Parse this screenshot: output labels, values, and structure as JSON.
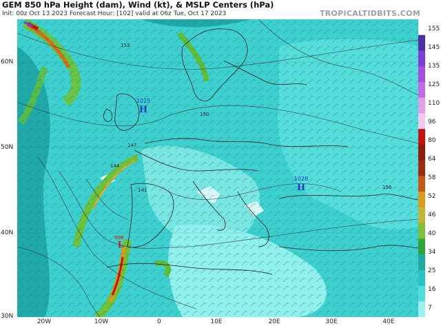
{
  "header": {
    "title": "GEM 850 hPa Height (dam), Wind (kt), & MSLP Centers (hPa)",
    "subtitle": "Init: 00z Oct 13 2023   Forecast Hour: [102]   valid at 06z Tue, Oct 17 2023",
    "brand": "TROPICALTIDBITS.COM"
  },
  "map": {
    "lat_labels": [
      "60N",
      "50N",
      "40N",
      "30N"
    ],
    "lon_labels": [
      "20W",
      "10W",
      "0",
      "10E",
      "20E",
      "30E",
      "40E"
    ],
    "pressure_centers": [
      {
        "type": "H",
        "value": "1025",
        "color": "#1f3fbf"
      },
      {
        "type": "H",
        "value": "1028",
        "color": "#1f3fbf"
      },
      {
        "type": "L",
        "value": "996",
        "color": "#d01818"
      }
    ],
    "contour_labels": [
      "150",
      "153",
      "156",
      "147",
      "144",
      "141"
    ]
  },
  "colorbar": {
    "labels": [
      "155",
      "145",
      "135",
      "125",
      "110",
      "96",
      "80",
      "64",
      "58",
      "52",
      "46",
      "40",
      "34",
      "25",
      "16",
      "7"
    ],
    "colors": [
      "#ffffff",
      "#4b2fa3",
      "#7e3fd6",
      "#a64fdf",
      "#c46be3",
      "#e29fe9",
      "#f1c9f1",
      "#c21212",
      "#8b1b0b",
      "#9a2c12",
      "#c6591a",
      "#d69d1c",
      "#c0b53a",
      "#7fbf3a",
      "#33a43b",
      "#1fa9a0",
      "#27c4c7",
      "#4fdcdc",
      "#9bf0f0"
    ]
  }
}
